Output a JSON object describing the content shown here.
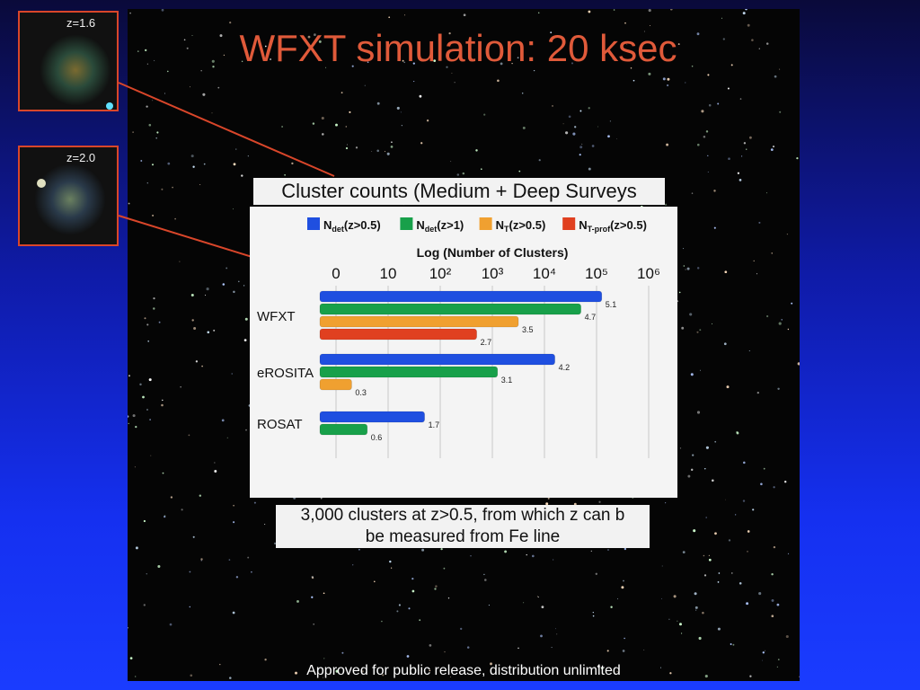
{
  "slide": {
    "title": "WFXT simulation: 20 ksec",
    "inset_top_label": "z=1.6",
    "inset_bottom_label": "z=2.0",
    "chart_heading": "Cluster counts (Medium + Deep Surveys",
    "caption_line1": "3,000 clusters at z>0.5, from which z can b",
    "caption_line2": "be measured from Fe line",
    "footer": "Approved for public release, distribution unlimited"
  },
  "colors": {
    "accent_title": "#e05a3a",
    "inset_border": "#d9462a"
  },
  "chart_data": {
    "type": "bar",
    "title": "Cluster counts (Medium + Deep Surveys",
    "xlabel": "Log (Number of Clusters)",
    "x_scale": "log",
    "xlim": [
      0,
      6
    ],
    "xtick_labels": [
      "0",
      "10",
      "10²",
      "10³",
      "10⁴",
      "10⁵",
      "10⁶"
    ],
    "legend_position": "top",
    "categories": [
      "WFXT",
      "eROSITA",
      "ROSAT"
    ],
    "series": [
      {
        "name": "Ndet(z>0.5)",
        "legend_main": "N",
        "legend_sub": "det",
        "legend_tail": "(z>0.5)",
        "color": "#1f4fe0",
        "values": [
          5.1,
          4.2,
          1.7
        ],
        "labels": [
          "5.1",
          "4.2",
          "1.7"
        ]
      },
      {
        "name": "Ndet(z>1)",
        "legend_main": "N",
        "legend_sub": "det",
        "legend_tail": "(z>1)",
        "color": "#18a04a",
        "values": [
          4.7,
          3.1,
          0.6
        ],
        "labels": [
          "4.7",
          "3.1",
          "0.6"
        ]
      },
      {
        "name": "NT(z>0.5)",
        "legend_main": "N",
        "legend_sub": "T",
        "legend_tail": "(z>0.5)",
        "color": "#f0a030",
        "values": [
          3.5,
          0.3,
          null
        ],
        "labels": [
          "3.5",
          "0.3",
          ""
        ]
      },
      {
        "name": "NT-prof(z>0.5)",
        "legend_main": "N",
        "legend_sub": "T-prof",
        "legend_tail": "(z>0.5)",
        "color": "#e04020",
        "values": [
          2.7,
          null,
          null
        ],
        "labels": [
          "2.7",
          "",
          ""
        ]
      }
    ]
  }
}
